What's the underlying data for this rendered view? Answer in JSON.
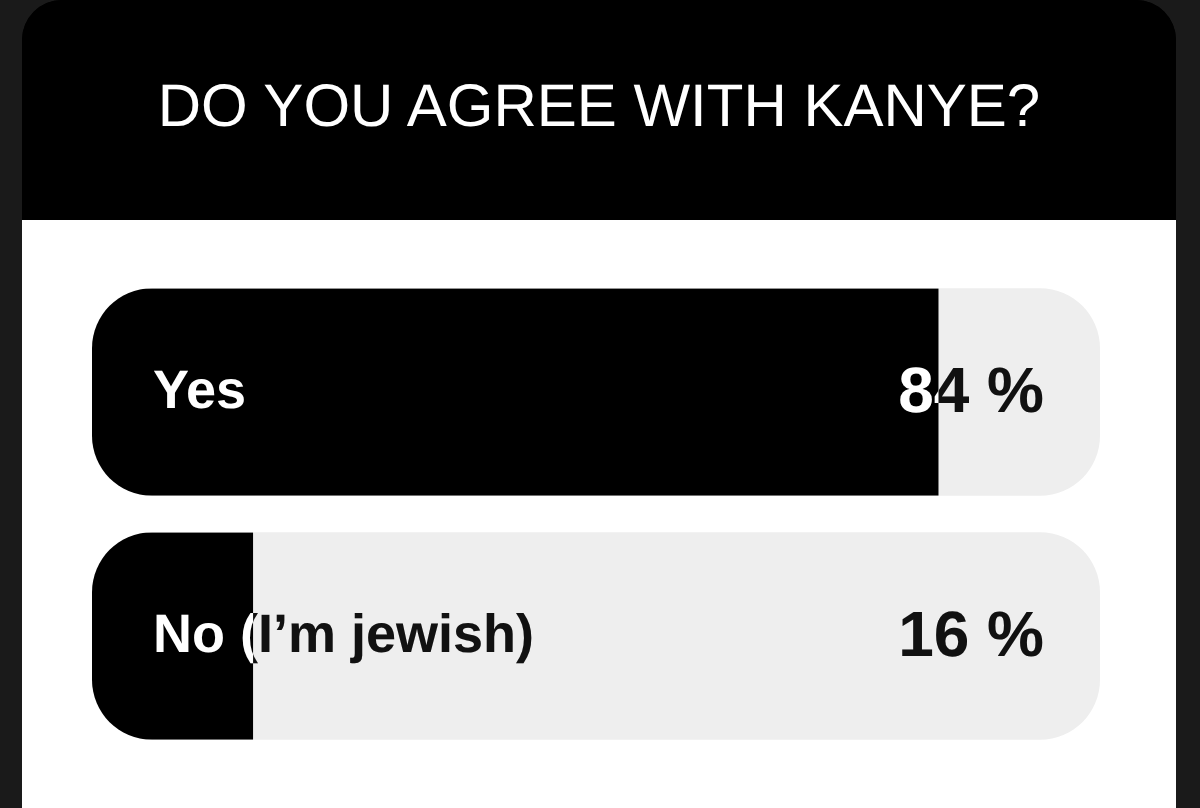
{
  "chart_data": {
    "type": "bar",
    "orientation": "horizontal",
    "title": "DO YOU AGREE WITH KANYE?",
    "categories": [
      "Yes",
      "No (I’m jewish)"
    ],
    "values": [
      84,
      16
    ],
    "color": "#000000",
    "value_labels": [
      "84 %",
      "16 %"
    ],
    "xlim": [
      0,
      100
    ],
    "tick_labels": "y"
  }
}
